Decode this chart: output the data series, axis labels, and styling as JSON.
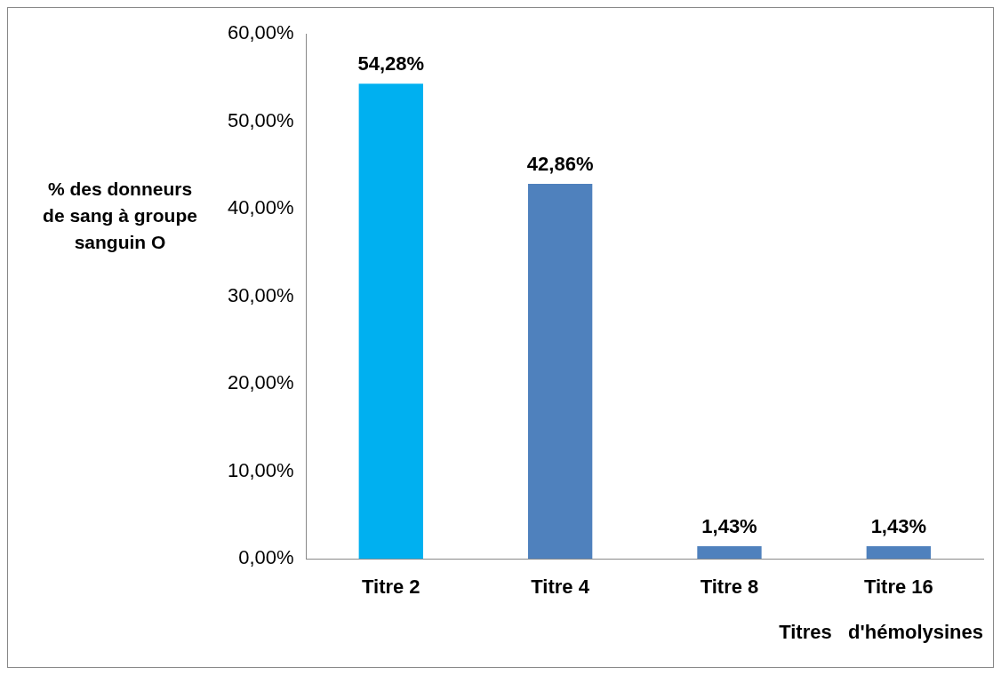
{
  "chart_data": {
    "type": "bar",
    "xlabel": "Titres   d'hémolysines",
    "ylabel": "% des donneurs de sang à groupe sanguin O",
    "categories": [
      "Titre 2",
      "Titre 4",
      "Titre 8",
      "Titre 16"
    ],
    "values": [
      54.28,
      42.86,
      1.43,
      1.43
    ],
    "colors": [
      "#00b0f0",
      "#4f81bd",
      "#4f81bd",
      "#4f81bd"
    ],
    "value_labels": [
      "54,28%",
      "42,86%",
      "1,43%",
      "1,43%"
    ],
    "ylim": [
      0,
      60
    ],
    "yticks": [
      {
        "value": 0,
        "label": "0,00%"
      },
      {
        "value": 10,
        "label": "10,00%"
      },
      {
        "value": 20,
        "label": "20,00%"
      },
      {
        "value": 30,
        "label": "30,00%"
      },
      {
        "value": 40,
        "label": "40,00%"
      },
      {
        "value": 50,
        "label": "50,00%"
      },
      {
        "value": 60,
        "label": "60,00%"
      }
    ],
    "grid": false,
    "legend": false
  }
}
